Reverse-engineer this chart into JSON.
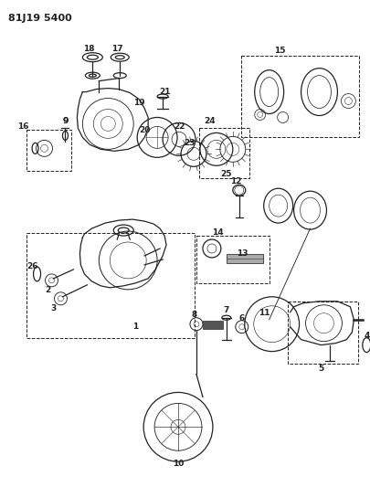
{
  "title": "81J19 5400",
  "bg": "#ffffff",
  "lc": "#222222",
  "figsize": [
    4.06,
    5.33
  ],
  "dpi": 100
}
